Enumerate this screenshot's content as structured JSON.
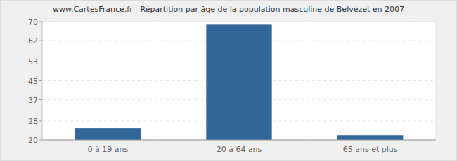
{
  "chart_data": {
    "type": "bar",
    "title": "www.CartesFrance.fr - Répartition par âge de la population masculine de Belvézet en 2007",
    "categories": [
      "0 à 19 ans",
      "20 à 64 ans",
      "65 ans et plus"
    ],
    "values": [
      25,
      69,
      22
    ],
    "color": "#336699",
    "ylim": [
      20,
      70
    ],
    "yticks": [
      20,
      28,
      37,
      45,
      53,
      62,
      70
    ],
    "grid": true
  }
}
